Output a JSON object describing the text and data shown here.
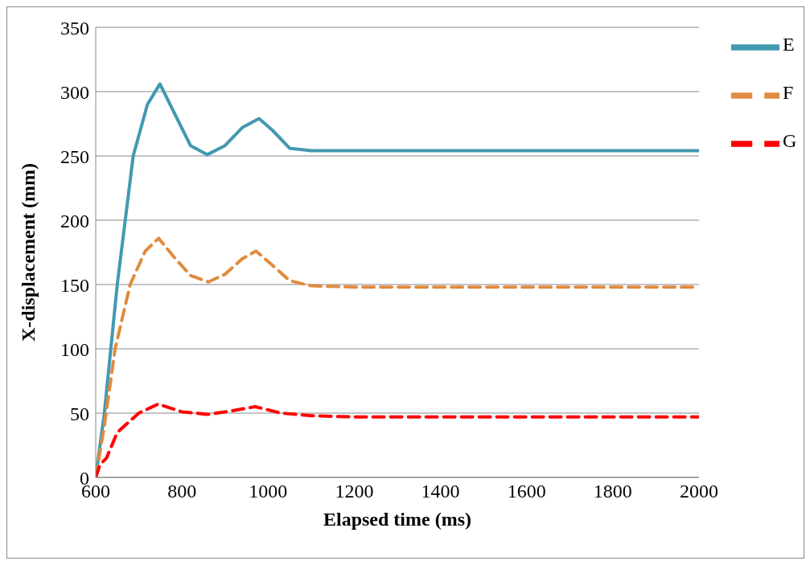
{
  "chart_data": {
    "type": "line",
    "xlabel": "Elapsed time (ms)",
    "ylabel": "X-displacement (mm)",
    "xlim": [
      600,
      2000
    ],
    "xticks": [
      600,
      800,
      1000,
      1200,
      1400,
      1600,
      1800,
      2000
    ],
    "ylim": [
      0,
      350
    ],
    "yticks": [
      0,
      50,
      100,
      150,
      200,
      250,
      300,
      350
    ],
    "grid": "y",
    "legend": "top right",
    "marker": "none",
    "series": [
      {
        "name": "E",
        "color": "#4299b0",
        "line_style": "solid",
        "x": [
          600,
          620,
          650,
          687,
          720,
          749,
          780,
          820,
          859,
          900,
          940,
          979,
          1010,
          1050,
          1100,
          1200,
          1400,
          1600,
          1800,
          2000
        ],
        "values": [
          0,
          50,
          150,
          250,
          290,
          306,
          285,
          258,
          251,
          258,
          272,
          279,
          270,
          256,
          254,
          254,
          254,
          254,
          254,
          254
        ]
      },
      {
        "name": "F",
        "color": "#e08b3f",
        "line_style": "dashed",
        "x": [
          600,
          620,
          645,
          680,
          715,
          746,
          780,
          820,
          862,
          900,
          940,
          972,
          1010,
          1050,
          1100,
          1200,
          1400,
          1600,
          1800,
          2000
        ],
        "values": [
          0,
          40,
          100,
          150,
          176,
          186,
          172,
          157,
          152,
          158,
          170,
          176,
          165,
          153,
          149,
          148,
          148,
          148,
          148,
          148
        ]
      },
      {
        "name": "G",
        "color": "#ff0000",
        "line_style": "dashed",
        "x": [
          600,
          610,
          625,
          650,
          700,
          745,
          800,
          860,
          920,
          970,
          1030,
          1100,
          1200,
          1400,
          1600,
          1800,
          2000
        ],
        "values": [
          0,
          10,
          15,
          35,
          50,
          57,
          51,
          49,
          52,
          55,
          50,
          48,
          47,
          47,
          47,
          47,
          47
        ]
      }
    ]
  }
}
